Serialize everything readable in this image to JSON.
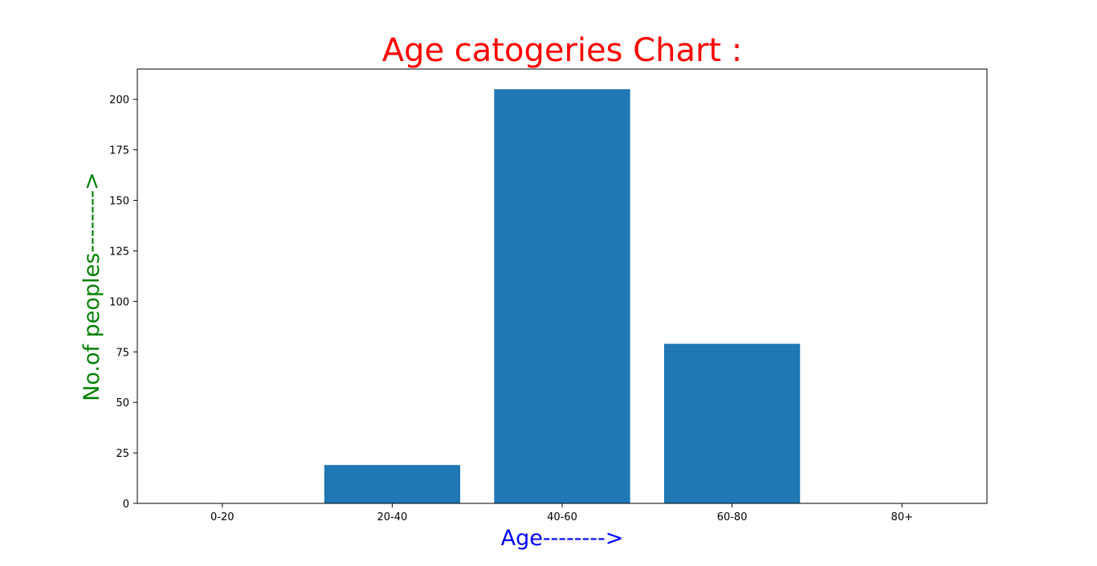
{
  "chart_data": {
    "type": "bar",
    "title": "Age catogeries Chart :",
    "xlabel": "Age-------->",
    "ylabel": "No.of peoples-------->",
    "categories": [
      "0-20",
      "20-40",
      "40-60",
      "60-80",
      "80+"
    ],
    "values": [
      0,
      19,
      205,
      79,
      0
    ],
    "ylim": [
      0,
      215
    ],
    "yticks": [
      0,
      25,
      50,
      75,
      100,
      125,
      150,
      175,
      200
    ],
    "grid": false,
    "legend": "none",
    "colors": {
      "bar": "#1f77b4",
      "title": "#ff0000",
      "xlabel": "#0000ff",
      "ylabel": "#008000"
    }
  }
}
